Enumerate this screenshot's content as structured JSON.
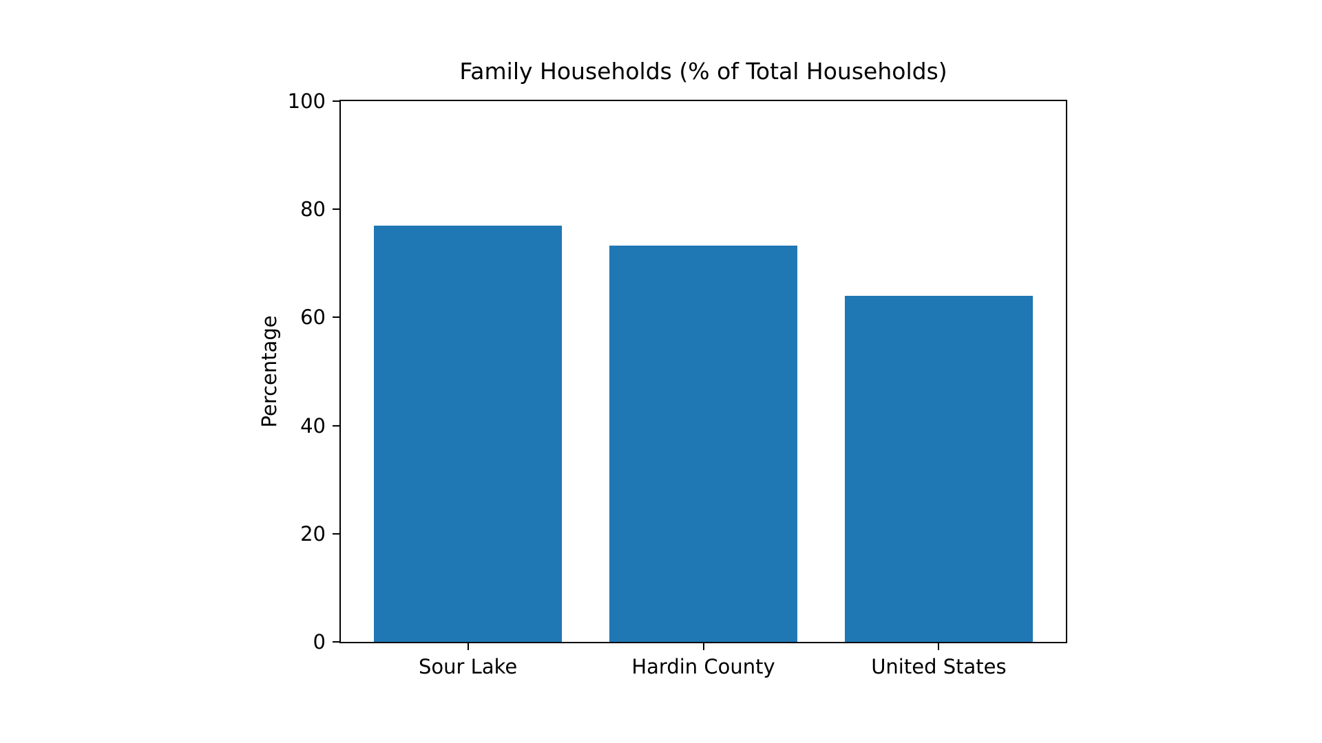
{
  "figure": {
    "background": "#ffffff",
    "text_color": "#000000",
    "spine_color": "#000000"
  },
  "chart_data": {
    "type": "bar",
    "title": "Family Households (% of Total Households)",
    "xlabel": "",
    "ylabel": "Percentage",
    "categories": [
      "Sour Lake",
      "Hardin County",
      "United States"
    ],
    "values": [
      77.0,
      73.3,
      64.0
    ],
    "ylim": [
      0,
      100
    ],
    "yticks": [
      0,
      20,
      40,
      60,
      80,
      100
    ],
    "xlim": [
      -0.54,
      2.54
    ],
    "bar_width": 0.8,
    "bar_color": "#1f77b4",
    "grid": false,
    "legend": "none"
  }
}
